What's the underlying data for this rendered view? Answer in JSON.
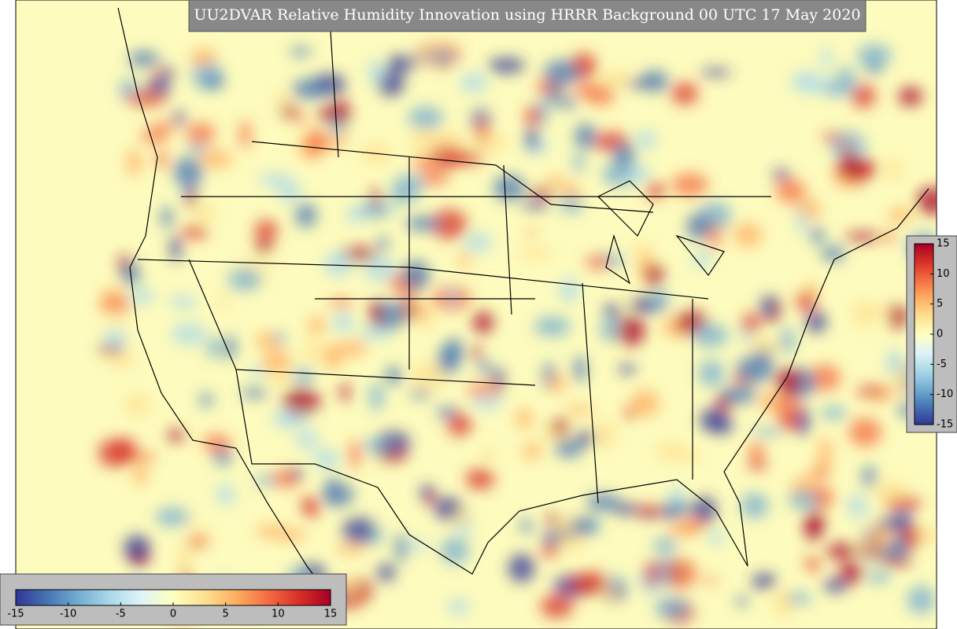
{
  "title": "UU2DVAR Relative Humidity Innovation using HRRR Background 00 UTC 17 May 2020",
  "colormap": [
    "#313695",
    "#4575b4",
    "#74add1",
    "#abd9e9",
    "#e0f3f8",
    "#ffffbf",
    "#fee090",
    "#fdae61",
    "#f46d43",
    "#d73027",
    "#a50026"
  ],
  "colorbars": [
    {
      "orientation": "horizontal",
      "range": [
        -15,
        15
      ],
      "ticks": [
        -15,
        -10,
        -5,
        0,
        5,
        10,
        15
      ]
    },
    {
      "orientation": "vertical",
      "range": [
        -15,
        15
      ],
      "ticks": [
        15,
        10,
        5,
        0,
        -5,
        -10,
        -15
      ]
    }
  ]
}
